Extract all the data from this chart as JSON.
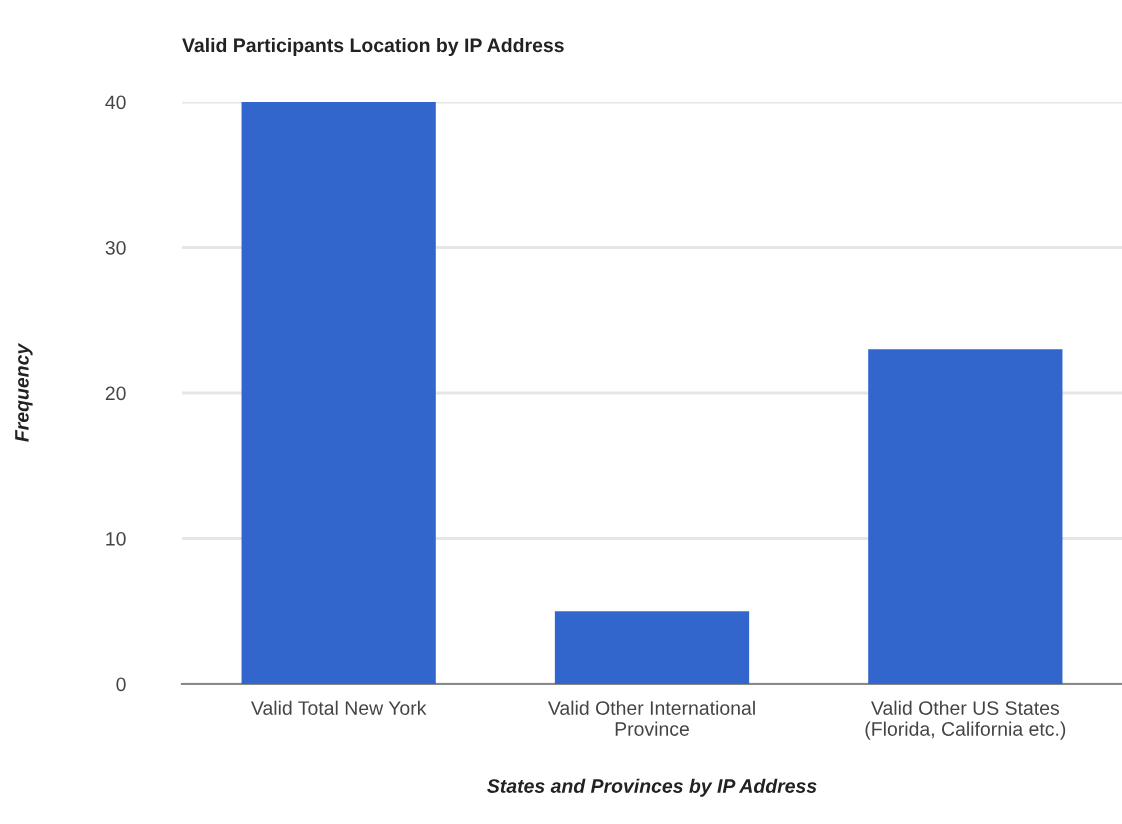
{
  "chart_data": {
    "type": "bar",
    "title": "Valid Participants Location by IP Address",
    "categories": [
      "Valid Total New York",
      "Valid Other International\nProvince",
      "Valid Other US States\n(Florida, California etc.)"
    ],
    "values": [
      40,
      5,
      23
    ],
    "color": "#3366cc",
    "xlabel": "States and Provinces by IP Address",
    "ylabel": "Frequency",
    "ylim": [
      0,
      40
    ],
    "yticks": [
      0,
      10,
      20,
      30,
      40
    ],
    "grid": "y",
    "legend": false
  }
}
